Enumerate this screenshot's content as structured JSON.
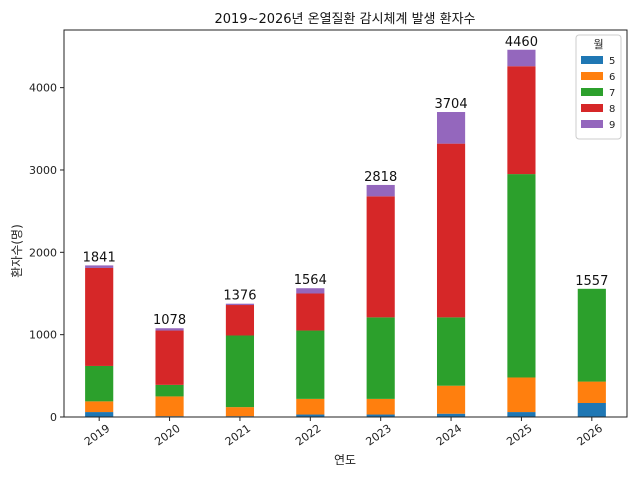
{
  "chart_data": {
    "type": "bar",
    "stacked": true,
    "title": "2019~2026년 온열질환 감시체계 발생 환자수",
    "xlabel": "연도",
    "ylabel": "환자수(명)",
    "categories": [
      "2019",
      "2020",
      "2021",
      "2022",
      "2023",
      "2024",
      "2025",
      "2026"
    ],
    "ylim": [
      0,
      4700
    ],
    "yticks": [
      0,
      1000,
      2000,
      3000,
      4000
    ],
    "grid": false,
    "legend": {
      "title": "월",
      "placement": "top-right"
    },
    "series": [
      {
        "name": "5",
        "color": "#1f77b4",
        "values": [
          60,
          10,
          10,
          30,
          30,
          40,
          60,
          170
        ]
      },
      {
        "name": "6",
        "color": "#ff7f0e",
        "values": [
          130,
          240,
          110,
          190,
          190,
          340,
          420,
          260
        ]
      },
      {
        "name": "7",
        "color": "#2ca02c",
        "values": [
          430,
          140,
          870,
          830,
          990,
          830,
          2470,
          1127
        ]
      },
      {
        "name": "8",
        "color": "#d62728",
        "values": [
          1190,
          660,
          370,
          450,
          1470,
          2110,
          1310,
          0
        ]
      },
      {
        "name": "9",
        "color": "#9467bd",
        "values": [
          31,
          28,
          16,
          64,
          138,
          384,
          200,
          0
        ]
      }
    ],
    "totals": [
      "1841",
      "1078",
      "1376",
      "1564",
      "2818",
      "3704",
      "4460",
      "1557"
    ]
  }
}
